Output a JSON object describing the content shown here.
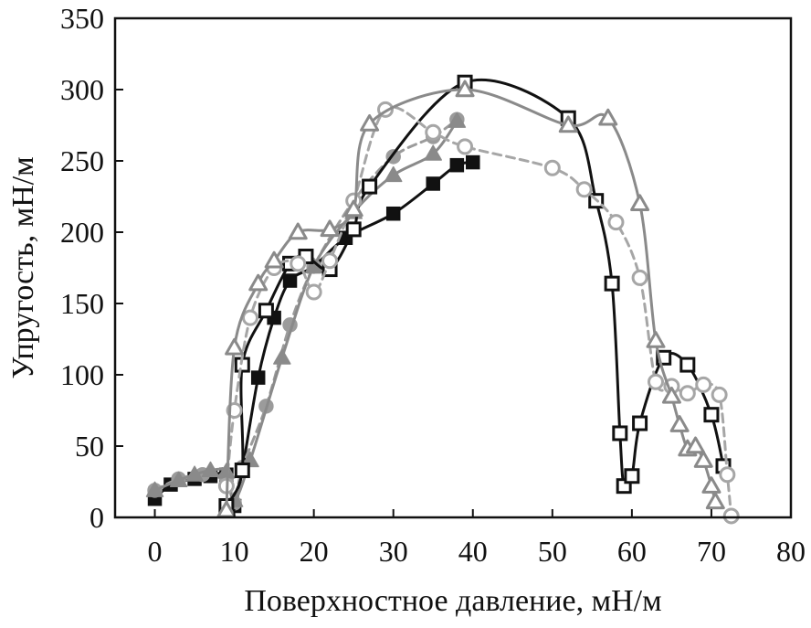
{
  "chart_data": {
    "type": "line",
    "title": "",
    "xlabel": "Поверхностное давление, мН/м",
    "ylabel": "Упругость, мН/м",
    "xlim": [
      -5,
      80
    ],
    "ylim": [
      0,
      350
    ],
    "xticks": [
      0,
      10,
      20,
      30,
      40,
      50,
      60,
      70,
      80
    ],
    "yticks": [
      0,
      50,
      100,
      150,
      200,
      250,
      300,
      350
    ],
    "xtick_labels": [
      "0",
      "10",
      "20",
      "30",
      "40",
      "50",
      "60",
      "70",
      "80"
    ],
    "ytick_labels": [
      "0",
      "50",
      "100",
      "150",
      "200",
      "250",
      "300",
      "350"
    ],
    "grid": false,
    "legend": "none",
    "series": [
      {
        "marker": "filled-square",
        "color": "#111111",
        "line_style": "solid",
        "points": [
          [
            0,
            13
          ],
          [
            2,
            23
          ],
          [
            5,
            27
          ],
          [
            7,
            29
          ],
          [
            9,
            30
          ],
          [
            10,
            8
          ],
          [
            11,
            33
          ],
          [
            13,
            98
          ],
          [
            15,
            140
          ],
          [
            17,
            166
          ],
          [
            20,
            176
          ],
          [
            24,
            196
          ],
          [
            30,
            213
          ],
          [
            35,
            234
          ],
          [
            38,
            247
          ],
          [
            40,
            249
          ]
        ]
      },
      {
        "marker": "filled-circle",
        "color": "#9b9b9b",
        "line_style": "dashed",
        "points": [
          [
            0,
            19
          ],
          [
            3,
            27
          ],
          [
            6,
            30
          ],
          [
            9,
            28
          ],
          [
            10,
            10
          ],
          [
            11,
            35
          ],
          [
            14,
            78
          ],
          [
            17,
            135
          ],
          [
            20,
            176
          ],
          [
            25,
            222
          ],
          [
            30,
            253
          ],
          [
            35,
            267
          ],
          [
            38,
            279
          ]
        ]
      },
      {
        "marker": "filled-triangle",
        "color": "#8a8a8a",
        "line_style": "solid",
        "points": [
          [
            0,
            19
          ],
          [
            3,
            26
          ],
          [
            5,
            30
          ],
          [
            7,
            33
          ],
          [
            9,
            32
          ],
          [
            10,
            12
          ],
          [
            12,
            40
          ],
          [
            16,
            112
          ],
          [
            20,
            176
          ],
          [
            25,
            214
          ],
          [
            30,
            240
          ],
          [
            35,
            255
          ],
          [
            38,
            278
          ]
        ]
      },
      {
        "marker": "open-square",
        "color": "#111111",
        "line_style": "solid",
        "points": [
          [
            9,
            8
          ],
          [
            11,
            33
          ],
          [
            11,
            107
          ],
          [
            14,
            145
          ],
          [
            17,
            178
          ],
          [
            19,
            183
          ],
          [
            22,
            174
          ],
          [
            25,
            202
          ],
          [
            27,
            232
          ],
          [
            39,
            305
          ],
          [
            52,
            280
          ],
          [
            55.5,
            222
          ],
          [
            57.5,
            164
          ],
          [
            58.5,
            59
          ],
          [
            59,
            22
          ],
          [
            60,
            29
          ],
          [
            61,
            66
          ],
          [
            64,
            112
          ],
          [
            67,
            107
          ],
          [
            70,
            72
          ],
          [
            71.5,
            36
          ]
        ]
      },
      {
        "marker": "open-circle",
        "color": "#a6a6a6",
        "line_style": "dashed",
        "points": [
          [
            9,
            22
          ],
          [
            10,
            75
          ],
          [
            12,
            140
          ],
          [
            15,
            175
          ],
          [
            18,
            178
          ],
          [
            20,
            158
          ],
          [
            22,
            180
          ],
          [
            25,
            222
          ],
          [
            29,
            286
          ],
          [
            35,
            270
          ],
          [
            39,
            260
          ],
          [
            50,
            245
          ],
          [
            54,
            230
          ],
          [
            58,
            207
          ],
          [
            61,
            168
          ],
          [
            63,
            95
          ],
          [
            65,
            92
          ],
          [
            67,
            87
          ],
          [
            69,
            93
          ],
          [
            71,
            86
          ],
          [
            72,
            30
          ],
          [
            72.5,
            1
          ]
        ]
      },
      {
        "marker": "open-triangle",
        "color": "#8a8a8a",
        "line_style": "solid",
        "points": [
          [
            9,
            5
          ],
          [
            10,
            119
          ],
          [
            13,
            164
          ],
          [
            15,
            180
          ],
          [
            18,
            200
          ],
          [
            22,
            202
          ],
          [
            25,
            216
          ],
          [
            27,
            276
          ],
          [
            39,
            300
          ],
          [
            52,
            275
          ],
          [
            57,
            280
          ],
          [
            61,
            220
          ],
          [
            63,
            124
          ],
          [
            65,
            85
          ],
          [
            66,
            65
          ],
          [
            67,
            48
          ],
          [
            68,
            50
          ],
          [
            69,
            40
          ],
          [
            70,
            22
          ],
          [
            70.5,
            11
          ]
        ]
      }
    ]
  }
}
